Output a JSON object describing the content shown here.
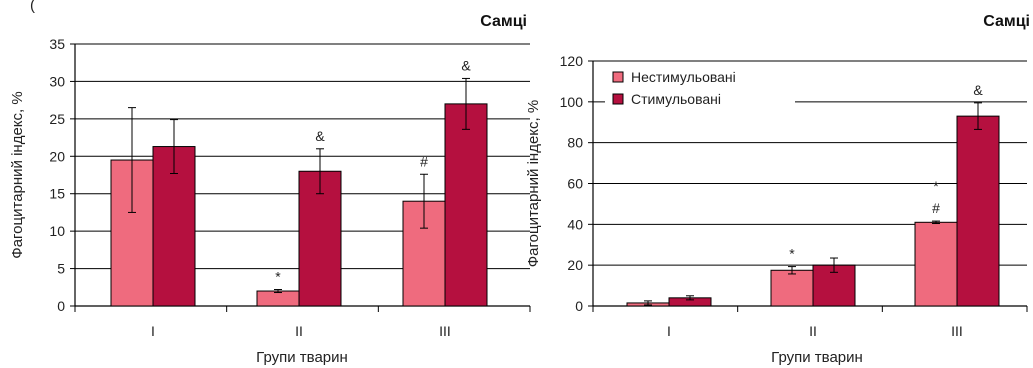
{
  "top_fragment": "(",
  "colors": {
    "unstim": "#ef6b7e",
    "stim": "#b5103f",
    "grid": "#000000"
  },
  "chart_data": [
    {
      "type": "bar",
      "title": "Самці",
      "xlabel": "Групи тварин",
      "ylabel": "Фагоцитарний індекс, %",
      "categories": [
        "I",
        "II",
        "III"
      ],
      "ylim": [
        0,
        35
      ],
      "yticks": [
        0,
        5,
        10,
        15,
        20,
        25,
        30,
        35
      ],
      "grid": true,
      "legend": "none",
      "series": [
        {
          "name": "",
          "values": [
            19.5,
            2.0,
            14.0
          ],
          "errors": [
            7.0,
            0.2,
            3.6
          ],
          "marks": [
            "",
            "*",
            "#"
          ]
        },
        {
          "name": "",
          "values": [
            21.3,
            18.0,
            27.0
          ],
          "errors": [
            3.6,
            3.0,
            3.4
          ],
          "marks": [
            "",
            "&",
            "&"
          ]
        }
      ]
    },
    {
      "type": "bar",
      "title": "Самці",
      "xlabel": "Групи тварин",
      "ylabel": "Фагоцитарний індекс, %",
      "categories": [
        "I",
        "II",
        "III"
      ],
      "ylim": [
        0,
        120
      ],
      "yticks": [
        0,
        20,
        40,
        60,
        80,
        100,
        120
      ],
      "grid": true,
      "legend": "top-left",
      "series": [
        {
          "name": "Нестимульовані",
          "values": [
            1.5,
            17.5,
            41.0
          ],
          "errors": [
            1.0,
            1.8,
            0.6
          ],
          "marks": [
            "",
            "*",
            "*\n#"
          ]
        },
        {
          "name": "Стимульовані",
          "values": [
            4.0,
            20.0,
            93.0
          ],
          "errors": [
            1.0,
            3.5,
            6.5
          ],
          "marks": [
            "",
            "",
            "&"
          ]
        }
      ]
    }
  ]
}
